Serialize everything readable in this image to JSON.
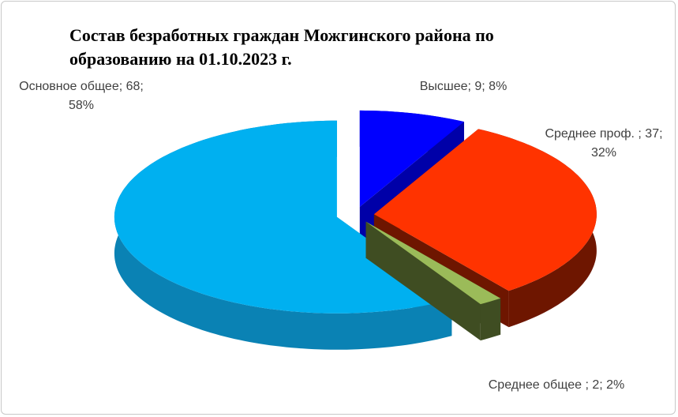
{
  "chart_data": {
    "type": "pie3d",
    "title": "Состав безработных граждан Можгинского района по образованию на 01.10.2023 г.",
    "categories": [
      "Высшее",
      "Среднее проф.",
      "Среднее общее",
      "Основное общее"
    ],
    "values": [
      9,
      37,
      2,
      68
    ],
    "value_labels": [
      "Высшее; 9; 8%",
      "Среднее проф. ; 37; 32%",
      "Среднее общее ; 2; 2%",
      "Основное общее; 68; 58%"
    ],
    "colors": [
      "#0000ff",
      "#ff3300",
      "#9bbb59",
      "#00b0f0"
    ],
    "side_colors": [
      "#0000a8",
      "#6e1600",
      "#3f4d22",
      "#0a82b4"
    ]
  }
}
